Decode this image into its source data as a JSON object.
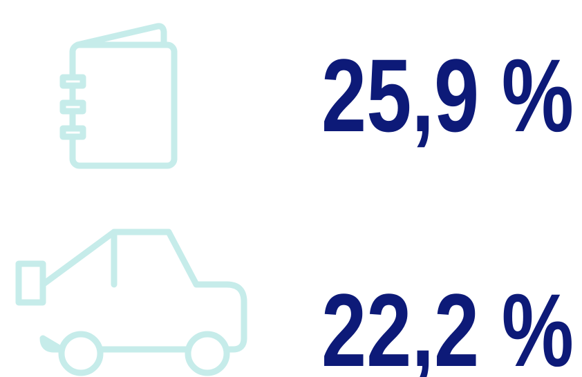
{
  "items": [
    {
      "label": "25,9 %"
    },
    {
      "label": "22,2 %"
    }
  ]
}
